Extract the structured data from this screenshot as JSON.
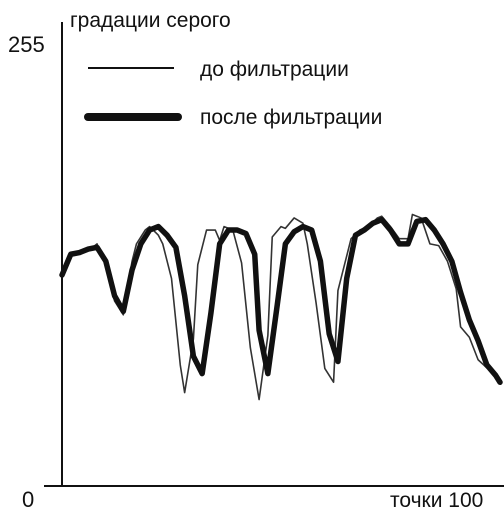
{
  "chart_data": {
    "type": "line",
    "title": "",
    "ylabel": "градации серого",
    "xlabel": "точки 100",
    "ylim": [
      0,
      255
    ],
    "xlim": [
      0,
      100
    ],
    "yticks": [
      {
        "value": 0,
        "label": "0"
      },
      {
        "value": 255,
        "label": "255"
      }
    ],
    "legend_position": "top-left",
    "series": [
      {
        "name": "до фильтрации",
        "color": "#333333",
        "style": "thin",
        "x": [
          0,
          2,
          4,
          5,
          7,
          8,
          10,
          12,
          14,
          16,
          17,
          19,
          20,
          22,
          23,
          25,
          27,
          28,
          30,
          31,
          33,
          35,
          36,
          37,
          39,
          41,
          43,
          45,
          47,
          48,
          50,
          51,
          53,
          55,
          56,
          58,
          60,
          62,
          63,
          66,
          68,
          70,
          72,
          73,
          75,
          77,
          79,
          80,
          82,
          84,
          86,
          88,
          90,
          91,
          93,
          95,
          98,
          100
        ],
        "y": [
          120,
          135,
          135,
          136,
          138,
          140,
          128,
          107,
          99,
          130,
          140,
          148,
          150,
          145,
          140,
          120,
          70,
          54,
          85,
          128,
          148,
          148,
          142,
          150,
          148,
          129,
          80,
          50,
          87,
          144,
          150,
          149,
          155,
          152,
          140,
          106,
          68,
          60,
          113,
          143,
          148,
          150,
          155,
          156,
          150,
          143,
          143,
          157,
          155,
          140,
          139,
          130,
          114,
          92,
          86,
          73,
          66,
          60
        ]
      },
      {
        "name": "после фильтрации",
        "color": "#111111",
        "style": "thick",
        "x": [
          0,
          2,
          4,
          6,
          8,
          10,
          12,
          14,
          16,
          18,
          20,
          22,
          24,
          26,
          28,
          30,
          32,
          34,
          36,
          38,
          40,
          42,
          44,
          45,
          47,
          49,
          51,
          53,
          55,
          57,
          59,
          61,
          63,
          65,
          67,
          69,
          71,
          73,
          75,
          77,
          79,
          81,
          83,
          85,
          87,
          89,
          91,
          93,
          95,
          97,
          99,
          100
        ],
        "y": [
          122,
          134,
          135,
          137,
          138,
          130,
          110,
          101,
          125,
          140,
          148,
          150,
          145,
          138,
          110,
          75,
          65,
          100,
          140,
          148,
          148,
          146,
          134,
          90,
          65,
          102,
          140,
          147,
          150,
          148,
          130,
          88,
          72,
          120,
          145,
          148,
          152,
          154,
          148,
          140,
          140,
          153,
          154,
          148,
          140,
          130,
          112,
          96,
          84,
          70,
          64,
          60
        ]
      }
    ]
  }
}
